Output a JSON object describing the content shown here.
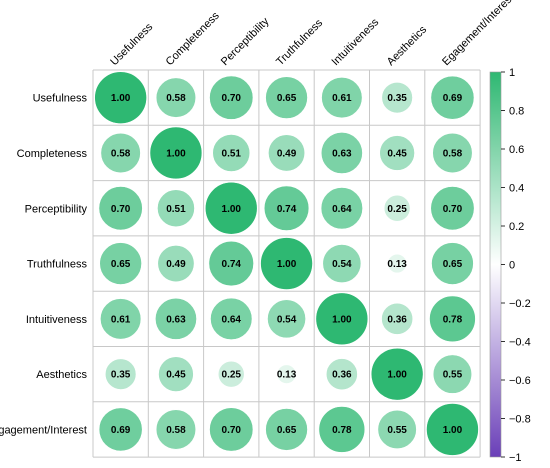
{
  "chart_data": {
    "type": "heatmap",
    "style": "circle",
    "labels": [
      "Usefulness",
      "Completeness",
      "Perceptibility",
      "Truthfulness",
      "Intuitiveness",
      "Aesthetics",
      "Egagement/Interest"
    ],
    "matrix": [
      [
        1.0,
        0.58,
        0.7,
        0.65,
        0.61,
        0.35,
        0.69
      ],
      [
        0.58,
        1.0,
        0.51,
        0.49,
        0.63,
        0.45,
        0.58
      ],
      [
        0.7,
        0.51,
        1.0,
        0.74,
        0.64,
        0.25,
        0.7
      ],
      [
        0.65,
        0.49,
        0.74,
        1.0,
        0.54,
        0.13,
        0.65
      ],
      [
        0.61,
        0.63,
        0.64,
        0.54,
        1.0,
        0.36,
        0.78
      ],
      [
        0.35,
        0.45,
        0.25,
        0.13,
        0.36,
        1.0,
        0.55
      ],
      [
        0.69,
        0.58,
        0.7,
        0.65,
        0.78,
        0.55,
        1.0
      ]
    ],
    "value_range": [
      -1,
      1
    ],
    "colorbar": {
      "ticks": [
        1,
        0.8,
        0.6,
        0.4,
        0.2,
        0,
        -0.2,
        -0.4,
        -0.6,
        -0.8,
        -1
      ],
      "tick_labels": [
        "1",
        "0.8",
        "0.6",
        "0.4",
        "0.2",
        "0",
        "−0.2",
        "−0.4",
        "−0.6",
        "−0.8",
        "−1"
      ],
      "colors": {
        "positive": "#2eb872",
        "zero": "#ffffff",
        "negative": "#6a3fb8"
      }
    }
  }
}
